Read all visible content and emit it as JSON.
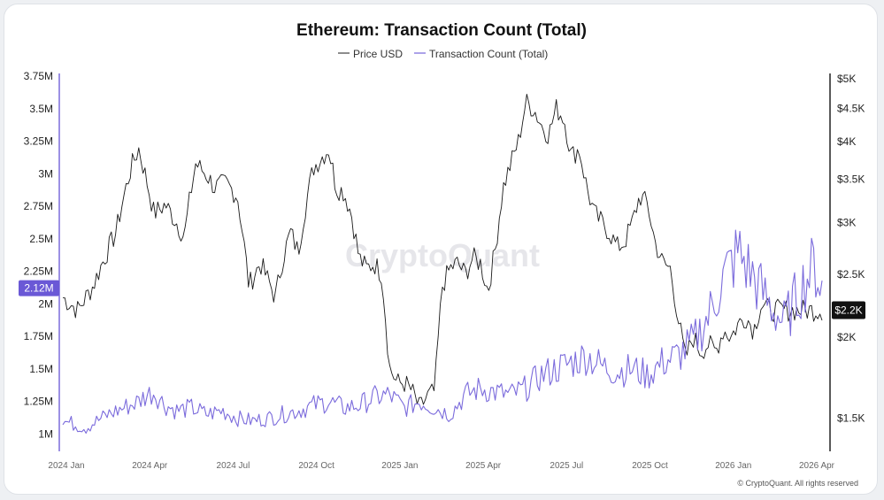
{
  "chart_data": {
    "type": "line",
    "title": "Ethereum: Transaction Count (Total)",
    "legend": [
      "Price USD",
      "Transaction Count (Total)"
    ],
    "legend_position": "top-center",
    "x_ticks": [
      "2024 Jan",
      "2024 Apr",
      "2024 Jul",
      "2024 Oct",
      "2025 Jan",
      "2025 Apr",
      "2025 Jul",
      "2025 Oct",
      "2026 Jan",
      "2026 Apr"
    ],
    "left_axis": {
      "label": "Transaction Count (Total)",
      "ticks": [
        "3.75M",
        "3.5M",
        "3.25M",
        "3M",
        "2.75M",
        "2.5M",
        "2.25M",
        "2M",
        "1.75M",
        "1.5M",
        "1.25M",
        "1M"
      ],
      "tick_values": [
        3.75,
        3.5,
        3.25,
        3,
        2.75,
        2.5,
        2.25,
        2,
        1.75,
        1.5,
        1.25,
        1
      ],
      "range": [
        0.9,
        3.75
      ],
      "current_label": "2.12M",
      "current_value": 2.12
    },
    "right_axis": {
      "label": "Price USD",
      "scale": "log",
      "ticks": [
        "$5K",
        "$4.5K",
        "$4K",
        "$3.5K",
        "$3K",
        "$2.5K",
        "$2K",
        "$1.5K"
      ],
      "tick_values": [
        5000,
        4500,
        4000,
        3500,
        3000,
        2500,
        2000,
        1500
      ],
      "current_label": "$2.2K",
      "current_value": 2200
    },
    "series": [
      {
        "name": "Price USD",
        "color": "#1a1a1a",
        "t": [
          0,
          0.02,
          0.04,
          0.07,
          0.09,
          0.1,
          0.11,
          0.12,
          0.135,
          0.15,
          0.16,
          0.175,
          0.19,
          0.2,
          0.215,
          0.23,
          0.245,
          0.26,
          0.27,
          0.28,
          0.29,
          0.3,
          0.31,
          0.32,
          0.33,
          0.35,
          0.36,
          0.37,
          0.38,
          0.39,
          0.4,
          0.41,
          0.42,
          0.43,
          0.44,
          0.45,
          0.46,
          0.47,
          0.48,
          0.49,
          0.5,
          0.51,
          0.52,
          0.53,
          0.54,
          0.55,
          0.56,
          0.57,
          0.58,
          0.59,
          0.6,
          0.61,
          0.62,
          0.63,
          0.64,
          0.65,
          0.66,
          0.67,
          0.68,
          0.69,
          0.7,
          0.71,
          0.72,
          0.73,
          0.74,
          0.75,
          0.76,
          0.77,
          0.78,
          0.79,
          0.8,
          0.81,
          0.82,
          0.83,
          0.84,
          0.85,
          0.86,
          0.87,
          0.88,
          0.89,
          0.9,
          0.91,
          0.92,
          0.93,
          0.94,
          0.95,
          0.96,
          0.97,
          0.98,
          0.99,
          1.0
        ],
        "values": [
          2300,
          2200,
          2400,
          2900,
          3650,
          3900,
          3500,
          3100,
          3200,
          3000,
          2850,
          3700,
          3550,
          3400,
          3450,
          3300,
          2400,
          2600,
          2450,
          2300,
          2650,
          2900,
          2700,
          3200,
          3650,
          3900,
          3400,
          3350,
          3100,
          2650,
          2550,
          2600,
          2500,
          1800,
          1700,
          1700,
          1650,
          1550,
          1620,
          1650,
          2400,
          2550,
          2600,
          2500,
          2650,
          2600,
          2350,
          2750,
          3400,
          3700,
          4000,
          4600,
          4500,
          4250,
          4100,
          4500,
          4350,
          3800,
          3900,
          3400,
          3100,
          3000,
          2900,
          2750,
          2800,
          3000,
          3300,
          3200,
          2800,
          2600,
          2550,
          2150,
          1850,
          2000,
          1900,
          1950,
          1900,
          2050,
          2000,
          2100,
          2150,
          2050,
          2250,
          2200,
          2200,
          2200,
          2200,
          2200,
          2200,
          2200,
          2200
        ],
        "current_display": "$2.2K"
      },
      {
        "name": "Transaction Count (Total)",
        "color": "#7b6bdc",
        "t": [
          0,
          0.03,
          0.06,
          0.08,
          0.1,
          0.11,
          0.12,
          0.135,
          0.15,
          0.17,
          0.19,
          0.21,
          0.23,
          0.25,
          0.27,
          0.29,
          0.31,
          0.33,
          0.35,
          0.37,
          0.39,
          0.41,
          0.43,
          0.45,
          0.47,
          0.49,
          0.51,
          0.53,
          0.55,
          0.57,
          0.59,
          0.61,
          0.63,
          0.65,
          0.67,
          0.69,
          0.71,
          0.73,
          0.75,
          0.77,
          0.79,
          0.81,
          0.83,
          0.85,
          0.87,
          0.89,
          0.91,
          0.93,
          0.95,
          0.97,
          0.99,
          1.0
        ],
        "values": [
          1.1,
          1.05,
          1.15,
          1.2,
          1.25,
          1.3,
          1.32,
          1.22,
          1.18,
          1.2,
          1.15,
          1.18,
          1.12,
          1.1,
          1.12,
          1.15,
          1.18,
          1.22,
          1.25,
          1.2,
          1.22,
          1.28,
          1.3,
          1.2,
          1.25,
          1.2,
          1.15,
          1.3,
          1.35,
          1.32,
          1.3,
          1.35,
          1.45,
          1.5,
          1.55,
          1.6,
          1.52,
          1.48,
          1.5,
          1.45,
          1.55,
          1.6,
          1.7,
          1.9,
          2.2,
          2.4,
          2.2,
          2.0,
          1.85,
          2.1,
          2.3,
          2.12
        ],
        "current_display": "2.12M"
      }
    ],
    "watermark": "CryptoQuant",
    "copyright": "© CryptoQuant. All rights reserved"
  }
}
